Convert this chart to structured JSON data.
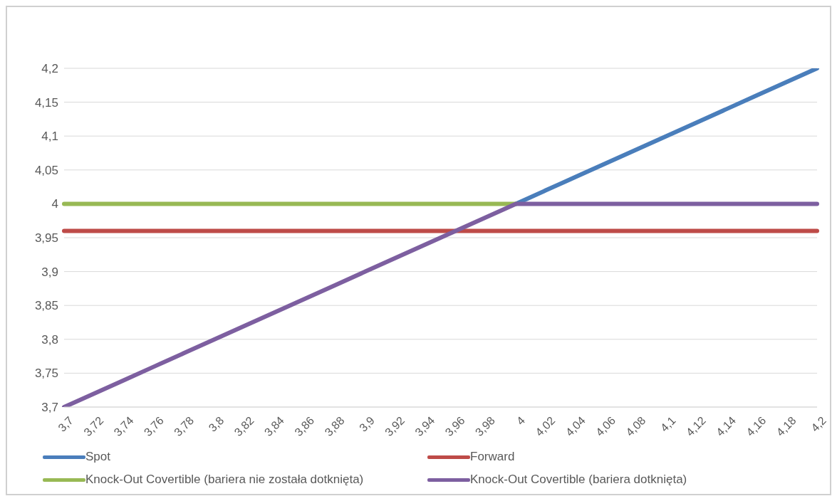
{
  "chart_data": {
    "type": "line",
    "categories": [
      "3,7",
      "3,72",
      "3,74",
      "3,76",
      "3,78",
      "3,8",
      "3,82",
      "3,84",
      "3,86",
      "3,88",
      "3,9",
      "3,92",
      "3,94",
      "3,96",
      "3,98",
      "4",
      "4,02",
      "4,04",
      "4,06",
      "4,08",
      "4,1",
      "4,12",
      "4,14",
      "4,16",
      "4,18",
      "4,2"
    ],
    "series": [
      {
        "name": "Spot",
        "color": "#4a7ebb",
        "values": [
          null,
          null,
          null,
          null,
          null,
          null,
          null,
          null,
          null,
          null,
          null,
          null,
          null,
          null,
          null,
          4,
          4.02,
          4.04,
          4.06,
          4.08,
          4.1,
          4.12,
          4.14,
          4.16,
          4.18,
          4.2
        ]
      },
      {
        "name": "Forward",
        "color": "#be4b48",
        "values": [
          3.96,
          3.96,
          3.96,
          3.96,
          3.96,
          3.96,
          3.96,
          3.96,
          3.96,
          3.96,
          3.96,
          3.96,
          3.96,
          3.96,
          3.96,
          3.96,
          3.96,
          3.96,
          3.96,
          3.96,
          3.96,
          3.96,
          3.96,
          3.96,
          3.96,
          3.96
        ]
      },
      {
        "name": "Knock-Out Covertible (bariera nie została dotknięta)",
        "color": "#98b954",
        "values": [
          4,
          4,
          4,
          4,
          4,
          4,
          4,
          4,
          4,
          4,
          4,
          4,
          4,
          4,
          4,
          4,
          null,
          null,
          null,
          null,
          null,
          null,
          null,
          null,
          null,
          null
        ]
      },
      {
        "name": "Knock-Out Covertible (bariera dotknięta)",
        "color": "#7d5fa0",
        "values": [
          3.7,
          3.72,
          3.74,
          3.76,
          3.78,
          3.8,
          3.82,
          3.84,
          3.86,
          3.88,
          3.9,
          3.92,
          3.94,
          3.96,
          3.98,
          4,
          4,
          4,
          4,
          4,
          4,
          4,
          4,
          4,
          4,
          4
        ]
      }
    ],
    "ylim": [
      3.7,
      4.2
    ],
    "yticks": [
      {
        "value": 3.7,
        "label": "3,7"
      },
      {
        "value": 3.75,
        "label": "3,75"
      },
      {
        "value": 3.8,
        "label": "3,8"
      },
      {
        "value": 3.85,
        "label": "3,85"
      },
      {
        "value": 3.9,
        "label": "3,9"
      },
      {
        "value": 3.95,
        "label": "3,95"
      },
      {
        "value": 4,
        "label": "4"
      },
      {
        "value": 4.05,
        "label": "4,05"
      },
      {
        "value": 4.1,
        "label": "4,1"
      },
      {
        "value": 4.15,
        "label": "4,15"
      },
      {
        "value": 4.2,
        "label": "4,2"
      }
    ],
    "grid": "y",
    "legend": "bottom",
    "marker": "none",
    "line_style": "solid"
  }
}
